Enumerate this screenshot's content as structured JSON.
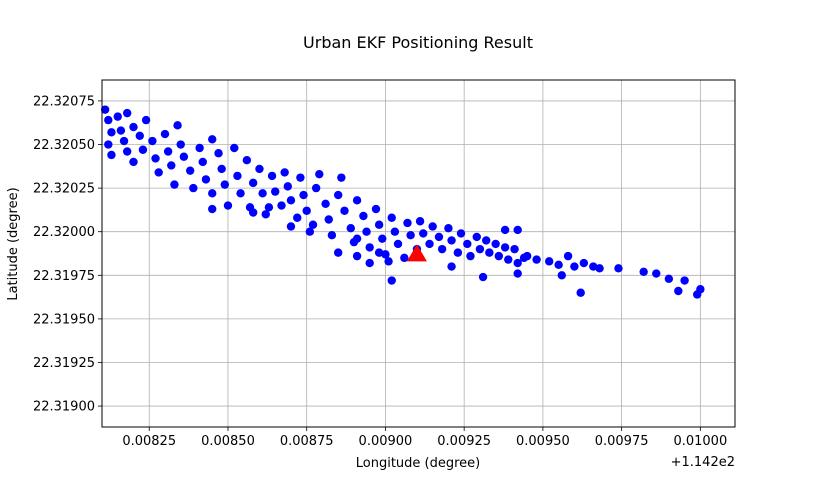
{
  "chart_data": {
    "type": "scatter",
    "title": "Urban EKF Positioning Result",
    "xlabel": "Longitude (degree)",
    "ylabel": "Latitude (degree)",
    "x_offset_label": "+1.142e2",
    "xlim": [
      0.0081,
      0.01011
    ],
    "ylim": [
      22.31888,
      22.32087
    ],
    "grid": true,
    "x_ticks": [
      0.00825,
      0.0085,
      0.00875,
      0.009,
      0.00925,
      0.0095,
      0.00975,
      0.01
    ],
    "x_tick_labels": [
      "0.00825",
      "0.00850",
      "0.00875",
      "0.00900",
      "0.00925",
      "0.00950",
      "0.00975",
      "0.01000"
    ],
    "y_ticks": [
      22.319,
      22.31925,
      22.3195,
      22.31975,
      22.32,
      22.32025,
      22.3205,
      22.32075
    ],
    "y_tick_labels": [
      "22.31900",
      "22.31925",
      "22.31950",
      "22.31975",
      "22.32000",
      "22.32025",
      "22.32050",
      "22.32075"
    ],
    "series": [
      {
        "marker": "circle",
        "color": "#0000ff",
        "points": [
          [
            0.00811,
            22.3207
          ],
          [
            0.00812,
            22.32064
          ],
          [
            0.00813,
            22.32057
          ],
          [
            0.00812,
            22.3205
          ],
          [
            0.00813,
            22.32044
          ],
          [
            0.00815,
            22.32066
          ],
          [
            0.00816,
            22.32058
          ],
          [
            0.00817,
            22.32052
          ],
          [
            0.00818,
            22.32068
          ],
          [
            0.00818,
            22.32046
          ],
          [
            0.0082,
            22.3206
          ],
          [
            0.0082,
            22.3204
          ],
          [
            0.00822,
            22.32055
          ],
          [
            0.00823,
            22.32047
          ],
          [
            0.00824,
            22.32064
          ],
          [
            0.00826,
            22.32052
          ],
          [
            0.00827,
            22.32042
          ],
          [
            0.00828,
            22.32034
          ],
          [
            0.0083,
            22.32056
          ],
          [
            0.00831,
            22.32046
          ],
          [
            0.00832,
            22.32038
          ],
          [
            0.00833,
            22.32027
          ],
          [
            0.00834,
            22.32061
          ],
          [
            0.00835,
            22.3205
          ],
          [
            0.00836,
            22.32043
          ],
          [
            0.00838,
            22.32035
          ],
          [
            0.00839,
            22.32025
          ],
          [
            0.00841,
            22.32048
          ],
          [
            0.00842,
            22.3204
          ],
          [
            0.00843,
            22.3203
          ],
          [
            0.00845,
            22.32053
          ],
          [
            0.00845,
            22.32022
          ],
          [
            0.00847,
            22.32045
          ],
          [
            0.00848,
            22.32036
          ],
          [
            0.00849,
            22.32027
          ],
          [
            0.0085,
            22.32015
          ],
          [
            0.00852,
            22.32048
          ],
          [
            0.00853,
            22.32032
          ],
          [
            0.00854,
            22.32022
          ],
          [
            0.00856,
            22.32041
          ],
          [
            0.00857,
            22.32014
          ],
          [
            0.00858,
            22.32028
          ],
          [
            0.0086,
            22.32036
          ],
          [
            0.00861,
            22.32022
          ],
          [
            0.00862,
            22.3201
          ],
          [
            0.00864,
            22.32032
          ],
          [
            0.00865,
            22.32023
          ],
          [
            0.00867,
            22.32015
          ],
          [
            0.00868,
            22.32034
          ],
          [
            0.00869,
            22.32026
          ],
          [
            0.0087,
            22.32018
          ],
          [
            0.00872,
            22.32008
          ],
          [
            0.00873,
            22.32031
          ],
          [
            0.00874,
            22.32021
          ],
          [
            0.00875,
            22.32012
          ],
          [
            0.00877,
            22.32004
          ],
          [
            0.00878,
            22.32025
          ],
          [
            0.00879,
            22.32033
          ],
          [
            0.00881,
            22.32016
          ],
          [
            0.00882,
            22.32007
          ],
          [
            0.00883,
            22.31998
          ],
          [
            0.00885,
            22.32021
          ],
          [
            0.00886,
            22.32031
          ],
          [
            0.00887,
            22.32012
          ],
          [
            0.00889,
            22.32002
          ],
          [
            0.0089,
            22.31994
          ],
          [
            0.00891,
            22.32018
          ],
          [
            0.00893,
            22.32009
          ],
          [
            0.00894,
            22.32
          ],
          [
            0.00895,
            22.31991
          ],
          [
            0.00897,
            22.32013
          ],
          [
            0.00898,
            22.32004
          ],
          [
            0.00899,
            22.31996
          ],
          [
            0.009,
            22.31987
          ],
          [
            0.00902,
            22.32008
          ],
          [
            0.00903,
            22.32
          ],
          [
            0.00904,
            22.31993
          ],
          [
            0.00906,
            22.31985
          ],
          [
            0.00907,
            22.32005
          ],
          [
            0.00908,
            22.31998
          ],
          [
            0.0091,
            22.3199
          ],
          [
            0.00911,
            22.32006
          ],
          [
            0.00912,
            22.31999
          ],
          [
            0.00914,
            22.31993
          ],
          [
            0.00915,
            22.32003
          ],
          [
            0.00917,
            22.31997
          ],
          [
            0.00918,
            22.3199
          ],
          [
            0.0092,
            22.32002
          ],
          [
            0.00921,
            22.31995
          ],
          [
            0.00923,
            22.31988
          ],
          [
            0.00924,
            22.31999
          ],
          [
            0.00926,
            22.31993
          ],
          [
            0.00927,
            22.31986
          ],
          [
            0.00929,
            22.31997
          ],
          [
            0.0093,
            22.3199
          ],
          [
            0.00932,
            22.31995
          ],
          [
            0.00933,
            22.31988
          ],
          [
            0.00935,
            22.31993
          ],
          [
            0.00936,
            22.31986
          ],
          [
            0.00938,
            22.31991
          ],
          [
            0.00939,
            22.31984
          ],
          [
            0.00941,
            22.3199
          ],
          [
            0.00942,
            22.31982
          ],
          [
            0.00945,
            22.31986
          ],
          [
            0.00948,
            22.31984
          ],
          [
            0.00952,
            22.31983
          ],
          [
            0.00955,
            22.31981
          ],
          [
            0.00958,
            22.31986
          ],
          [
            0.0096,
            22.3198
          ],
          [
            0.00963,
            22.31982
          ],
          [
            0.00966,
            22.3198
          ],
          [
            0.00968,
            22.31979
          ],
          [
            0.00974,
            22.31979
          ],
          [
            0.00982,
            22.31977
          ],
          [
            0.00986,
            22.31976
          ],
          [
            0.0099,
            22.31973
          ],
          [
            0.00995,
            22.31972
          ],
          [
            0.01,
            22.31967
          ],
          [
            0.00938,
            22.32001
          ],
          [
            0.00942,
            22.32001
          ],
          [
            0.00902,
            22.31972
          ],
          [
            0.00962,
            22.31965
          ],
          [
            0.00999,
            22.31964
          ],
          [
            0.00993,
            22.31966
          ],
          [
            0.00942,
            22.31976
          ],
          [
            0.00931,
            22.31974
          ],
          [
            0.00921,
            22.3198
          ],
          [
            0.00891,
            22.31986
          ],
          [
            0.00895,
            22.31982
          ],
          [
            0.00885,
            22.31988
          ],
          [
            0.00858,
            22.32011
          ],
          [
            0.00863,
            22.32014
          ],
          [
            0.00845,
            22.32013
          ],
          [
            0.00891,
            22.31996
          ],
          [
            0.00898,
            22.31988
          ],
          [
            0.00876,
            22.32
          ],
          [
            0.0087,
            22.32003
          ],
          [
            0.00901,
            22.31983
          ],
          [
            0.00944,
            22.31985
          ],
          [
            0.00956,
            22.31975
          ]
        ]
      },
      {
        "marker": "triangle",
        "color": "#ff0000",
        "points": [
          [
            0.0091,
            22.31987
          ]
        ]
      }
    ]
  }
}
